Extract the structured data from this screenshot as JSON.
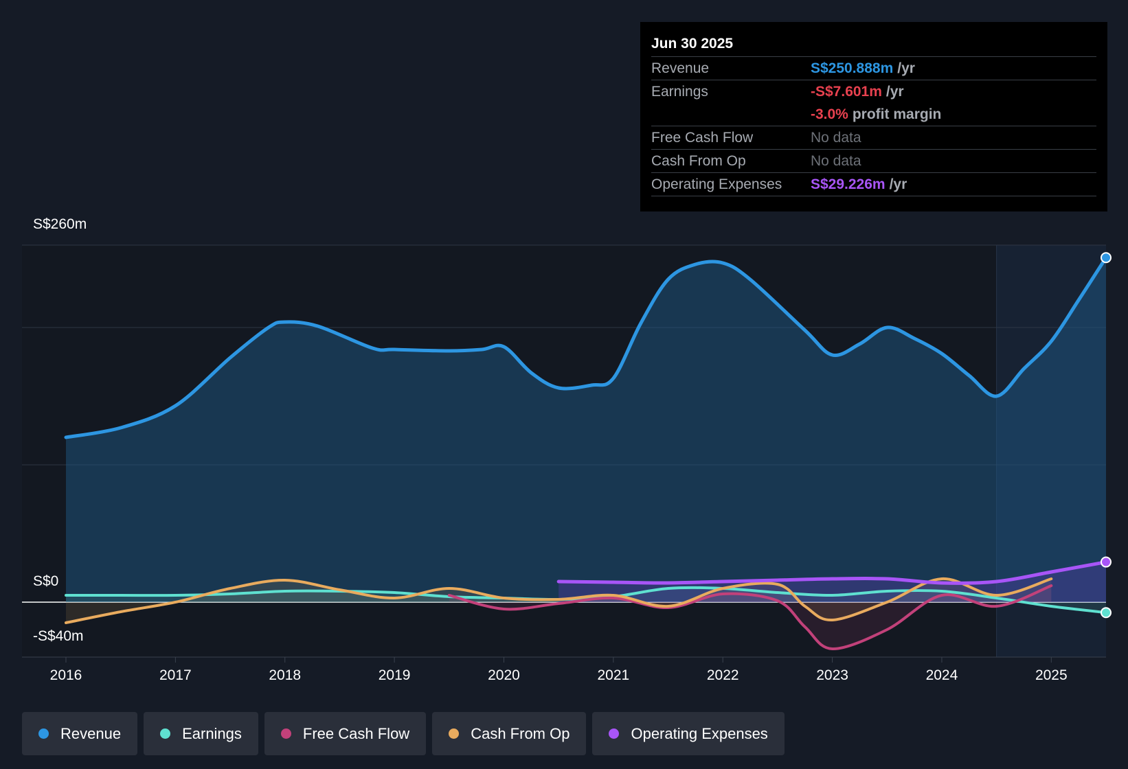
{
  "tooltip": {
    "date": "Jun 30 2025",
    "rows": [
      {
        "label": "Revenue",
        "value": "S$250.888m",
        "unit": "/yr",
        "color": "#2d96e2"
      },
      {
        "label": "Earnings",
        "value": "-S$7.601m",
        "unit": "/yr",
        "color": "#e8414f"
      },
      {
        "label": "",
        "value": "-3.0%",
        "unit": "profit margin",
        "color": "#e8414f"
      },
      {
        "label": "Free Cash Flow",
        "value": "No data"
      },
      {
        "label": "Cash From Op",
        "value": "No data"
      },
      {
        "label": "Operating Expenses",
        "value": "S$29.226m",
        "unit": "/yr",
        "color": "#a855f7"
      }
    ]
  },
  "legend": [
    {
      "label": "Revenue",
      "color": "#2d96e2"
    },
    {
      "label": "Earnings",
      "color": "#5fe0d0"
    },
    {
      "label": "Free Cash Flow",
      "color": "#c2417a"
    },
    {
      "label": "Cash From Op",
      "color": "#e9ab5e"
    },
    {
      "label": "Operating Expenses",
      "color": "#a855f7"
    }
  ],
  "chart_data": {
    "type": "line",
    "title": "",
    "xlabel": "",
    "ylabel": "",
    "y_tick_labels": [
      "S$260m",
      "S$0",
      "-S$40m"
    ],
    "ylim": [
      -40,
      260
    ],
    "xlim": [
      2016,
      2025.5
    ],
    "x_ticks": [
      "2016",
      "2017",
      "2018",
      "2019",
      "2020",
      "2021",
      "2022",
      "2023",
      "2024",
      "2025"
    ],
    "forecast_start": 2024.5,
    "series": [
      {
        "name": "Revenue",
        "color": "#2d96e2",
        "filled": true,
        "x": [
          2016,
          2016.5,
          2017,
          2017.5,
          2017.85,
          2018,
          2018.3,
          2018.8,
          2019,
          2019.5,
          2019.8,
          2020,
          2020.25,
          2020.5,
          2020.8,
          2021,
          2021.25,
          2021.5,
          2021.75,
          2022,
          2022.25,
          2022.75,
          2023,
          2023.25,
          2023.5,
          2023.75,
          2024,
          2024.25,
          2024.5,
          2024.75,
          2025,
          2025.25,
          2025.5
        ],
        "values": [
          120,
          127,
          143,
          178,
          200,
          204,
          201,
          185,
          184,
          183,
          184,
          186,
          167,
          156,
          158,
          163,
          203,
          235,
          246,
          247,
          235,
          198,
          180,
          188,
          200,
          192,
          181,
          165,
          150,
          170,
          190,
          220,
          250.888
        ]
      },
      {
        "name": "Earnings",
        "color": "#5fe0d0",
        "x": [
          2016,
          2016.5,
          2017,
          2017.5,
          2018,
          2018.5,
          2019,
          2019.5,
          2020,
          2020.5,
          2021,
          2021.5,
          2022,
          2022.5,
          2023,
          2023.5,
          2024,
          2024.5,
          2025,
          2025.5
        ],
        "values": [
          5,
          5,
          5,
          6,
          8,
          8,
          7,
          4,
          3,
          2,
          4,
          10,
          10,
          7,
          5,
          8,
          8,
          3,
          -3,
          -7.601
        ]
      },
      {
        "name": "Free Cash Flow",
        "color": "#c2417a",
        "x": [
          2019.5,
          2020,
          2020.5,
          2021,
          2021.5,
          2022,
          2022.5,
          2022.75,
          2023,
          2023.5,
          2024,
          2024.5,
          2025
        ],
        "values": [
          5,
          -5,
          -1,
          3,
          -4,
          6,
          1,
          -18,
          -34,
          -20,
          5,
          -3,
          12
        ]
      },
      {
        "name": "Cash From Op",
        "color": "#e9ab5e",
        "x": [
          2016,
          2016.5,
          2017,
          2017.5,
          2018,
          2018.5,
          2019,
          2019.5,
          2020,
          2020.5,
          2021,
          2021.5,
          2022,
          2022.5,
          2022.75,
          2023,
          2023.5,
          2024,
          2024.5,
          2025
        ],
        "values": [
          -15,
          -7,
          0,
          10,
          16,
          9,
          3,
          10,
          3,
          2,
          5,
          -3,
          10,
          13,
          -3,
          -13,
          0,
          17,
          5,
          17
        ]
      },
      {
        "name": "Operating Expenses",
        "color": "#a855f7",
        "filled": true,
        "x": [
          2020.5,
          2021,
          2021.5,
          2022,
          2022.5,
          2023,
          2023.5,
          2024,
          2024.5,
          2025,
          2025.5
        ],
        "values": [
          15,
          14.5,
          14,
          15,
          16,
          17,
          17,
          14,
          15,
          22,
          29.226
        ]
      }
    ]
  }
}
